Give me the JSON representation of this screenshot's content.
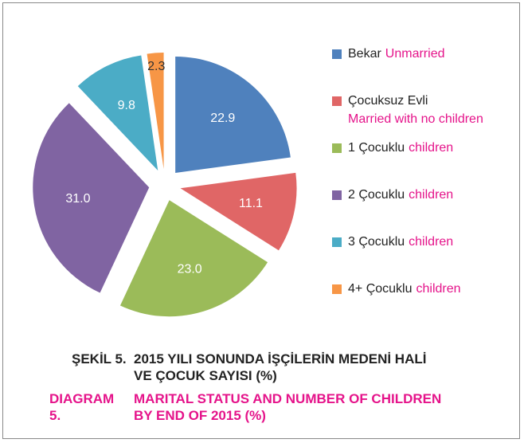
{
  "chart_data": {
    "type": "pie",
    "categories": [
      "Bekar",
      "Çocuksuz Evli",
      "1 Çocuklu",
      "2 Çocuklu",
      "3 Çocuklu",
      "4+ Çocuklu"
    ],
    "category_translations": [
      "Unmarried",
      "Married with no children",
      "children",
      "children",
      "children",
      "children"
    ],
    "values": [
      22.9,
      11.1,
      23.0,
      31.0,
      9.8,
      2.3
    ],
    "value_labels": [
      "22.9",
      "11.1",
      "23.0",
      "31.0",
      "9.8",
      "2.3"
    ],
    "colors": [
      "#4f81bd",
      "#e06666",
      "#9bbb59",
      "#8064a2",
      "#4bacc6",
      "#f79646"
    ],
    "title_label": "ŞEKİL 5.",
    "title": "2015 YILI SONUNDA İŞÇİLERİN MEDENİ HALİ VE ÇOCUK SAYISI (%)",
    "subtitle_label": "DIAGRAM 5.",
    "subtitle": "MARITAL STATUS AND NUMBER OF CHILDREN BY END OF 2015 (%)"
  }
}
